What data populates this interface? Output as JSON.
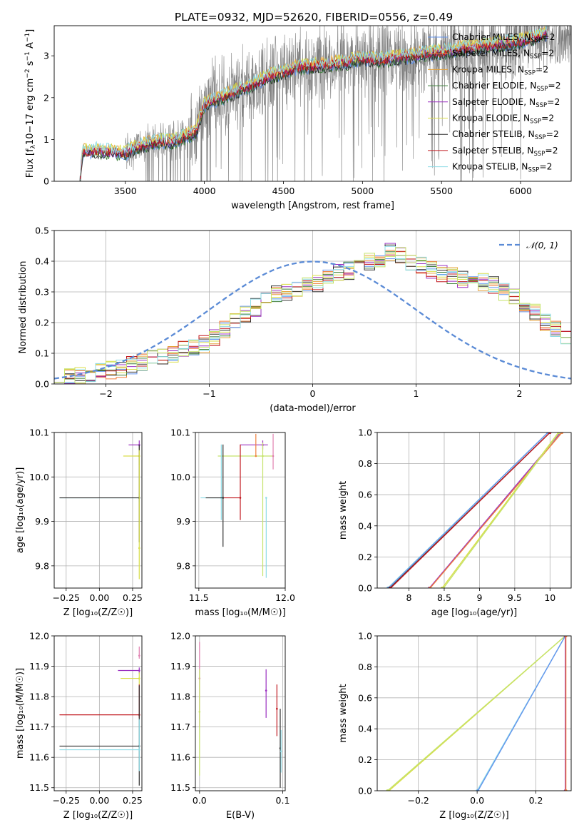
{
  "colors": {
    "Chabrier MILES": "#6495ED",
    "Salpeter MILES": "#F07F3C",
    "Kroupa MILES": "#E6A23B",
    "Chabrier ELODIE": "#3E7F3A",
    "Salpeter ELODIE": "#9A2FC0",
    "Kroupa ELODIE": "#D9DE4A",
    "Chabrier STELIB": "#303030",
    "Salpeter STELIB": "#C0171E",
    "Kroupa STELIB": "#8EDCE6",
    "data": "#808080",
    "gaussian": "#5B8BD6",
    "extra_pink": "#E07FB0",
    "extra_lime": "#C5E36A"
  },
  "chart_data": [
    {
      "id": "spectrum",
      "type": "line",
      "title": "PLATE=0932, MJD=52620, FIBERID=0556, z=0.49",
      "xlabel": "wavelength [Angstrom, rest frame]",
      "ylabel_parts": [
        "Flux [f",
        "λ",
        "10",
        "−17",
        " erg cm",
        "−2",
        " s",
        "−1",
        " A",
        "−1",
        "]"
      ],
      "xlim": [
        3050,
        6320
      ],
      "ylim": [
        0,
        3.72
      ],
      "xticks": [
        3500,
        4000,
        4500,
        5000,
        5500,
        6000
      ],
      "yticks": [
        0,
        1,
        2,
        3
      ],
      "grid": false,
      "legend_position": "upper-right",
      "series": [
        {
          "name": "Chabrier MILES",
          "sub": "SSP",
          "suffix": "=2"
        },
        {
          "name": "Salpeter MILES",
          "sub": "SSP",
          "suffix": "=2"
        },
        {
          "name": "Kroupa MILES",
          "sub": "SSP",
          "suffix": "=2"
        },
        {
          "name": "Chabrier ELODIE",
          "sub": "SSP",
          "suffix": "=2"
        },
        {
          "name": "Salpeter ELODIE",
          "sub": "SSP",
          "suffix": "=2"
        },
        {
          "name": "Kroupa ELODIE",
          "sub": "SSP",
          "suffix": "=2"
        },
        {
          "name": "Chabrier STELIB",
          "sub": "SSP",
          "suffix": "=2"
        },
        {
          "name": "Salpeter STELIB",
          "sub": "SSP",
          "suffix": "=2"
        },
        {
          "name": "Kroupa STELIB",
          "sub": "SSP",
          "suffix": "=2"
        }
      ],
      "model_continuum": [
        [
          3210,
          0.0
        ],
        [
          3230,
          0.7
        ],
        [
          3300,
          0.75
        ],
        [
          3400,
          0.7
        ],
        [
          3500,
          0.68
        ],
        [
          3600,
          0.85
        ],
        [
          3700,
          0.95
        ],
        [
          3800,
          0.95
        ],
        [
          3900,
          1.1
        ],
        [
          3950,
          1.2
        ],
        [
          4000,
          1.85
        ],
        [
          4100,
          2.0
        ],
        [
          4200,
          2.15
        ],
        [
          4300,
          2.3
        ],
        [
          4400,
          2.5
        ],
        [
          4500,
          2.6
        ],
        [
          4600,
          2.75
        ],
        [
          4700,
          2.75
        ],
        [
          4800,
          2.8
        ],
        [
          4900,
          2.85
        ],
        [
          5000,
          2.95
        ],
        [
          5100,
          2.9
        ],
        [
          5200,
          2.95
        ],
        [
          5300,
          3.0
        ],
        [
          5400,
          3.05
        ],
        [
          5500,
          3.1
        ],
        [
          5600,
          3.15
        ],
        [
          5700,
          3.2
        ],
        [
          5800,
          3.25
        ],
        [
          5900,
          3.3
        ],
        [
          6000,
          3.35
        ],
        [
          6100,
          3.45
        ],
        [
          6170,
          3.55
        ]
      ]
    },
    {
      "id": "residuals",
      "type": "step",
      "xlabel": "(data-model)/error",
      "ylabel": "Normed distribution",
      "xlim": [
        -2.5,
        2.5
      ],
      "ylim": [
        0,
        0.5
      ],
      "xticks": [
        -2,
        -1,
        0,
        1,
        2
      ],
      "yticks": [
        0.0,
        0.1,
        0.2,
        0.3,
        0.4,
        0.5
      ],
      "grid": true,
      "legend_position": "upper-right",
      "reference_curve": {
        "label": "𝒩(0, 1)",
        "mean": 0,
        "sigma": 1
      },
      "bin_width": 0.1,
      "bin_start": -2.5,
      "base_histogram": [
        0.02,
        0.025,
        0.03,
        0.03,
        0.04,
        0.045,
        0.05,
        0.06,
        0.07,
        0.08,
        0.09,
        0.1,
        0.11,
        0.12,
        0.13,
        0.15,
        0.18,
        0.2,
        0.23,
        0.25,
        0.27,
        0.29,
        0.3,
        0.31,
        0.32,
        0.33,
        0.35,
        0.36,
        0.37,
        0.38,
        0.4,
        0.41,
        0.43,
        0.42,
        0.4,
        0.39,
        0.37,
        0.36,
        0.35,
        0.34,
        0.34,
        0.33,
        0.32,
        0.3,
        0.28,
        0.25,
        0.23,
        0.2,
        0.18,
        0.15,
        0.13,
        0.12,
        0.11,
        0.1,
        0.09,
        0.08,
        0.07,
        0.06,
        0.05,
        0.04
      ]
    },
    {
      "id": "Z-age",
      "type": "error-cross",
      "xlabel": "Z [log₁₀(Z/Z☉)]",
      "ylabel": "age  [log₁₀(age/yr)]",
      "xlim": [
        -0.34,
        0.32
      ],
      "ylim": [
        9.75,
        10.1
      ],
      "xticks": [
        -0.25,
        0.0,
        0.25
      ],
      "xtick_labels": [
        "−0.25",
        "0.00",
        "0.25"
      ],
      "yticks": [
        9.8,
        9.9,
        10.0,
        10.1
      ],
      "grid": true,
      "points": [
        {
          "series": "Salpeter ELODIE",
          "x": 0.3,
          "y": 10.072,
          "xerr": [
            0.08,
            0.0
          ],
          "yerr": [
            0.01,
            0.01
          ]
        },
        {
          "series": "Kroupa ELODIE",
          "x": 0.3,
          "y": 10.047,
          "xerr": [
            0.12,
            0.0
          ],
          "yerr": [
            0.02,
            0.02
          ]
        },
        {
          "series": "Kroupa STELIB",
          "x": 0.3,
          "y": 9.953,
          "xerr": [
            0.6,
            0.0
          ],
          "yerr": [
            0.01,
            0.01
          ]
        },
        {
          "series": "Chabrier STELIB",
          "x": 0.3,
          "y": 9.953,
          "xerr": [
            0.6,
            0.0
          ],
          "yerr": [
            0.1,
            0.12
          ]
        },
        {
          "series": "Kroupa ELODIE",
          "x": 0.3,
          "y": 9.84,
          "xerr": [
            0.0,
            0.0
          ],
          "yerr": [
            0.07,
            0.22
          ]
        }
      ]
    },
    {
      "id": "mass-age",
      "type": "error-cross",
      "xlabel": "mass [log₁₀(M/M☉)]",
      "ylabel": "",
      "xlim": [
        11.48,
        12.0
      ],
      "ylim": [
        9.75,
        10.1
      ],
      "xticks": [
        11.5,
        12.0
      ],
      "xtick_labels": [
        "11.5",
        "12.0"
      ],
      "yticks": [
        9.8,
        9.9,
        10.0,
        10.1
      ],
      "grid": true,
      "points": [
        {
          "series": "Salpeter ELODIE",
          "x": 11.87,
          "y": 10.072,
          "xerr": [
            0.13,
            0.03
          ],
          "yerr": [
            0.01,
            0.01
          ]
        },
        {
          "series": "extra_lime",
          "x": 11.87,
          "y": 10.047,
          "xerr": [
            0.26,
            0.06
          ],
          "yerr": [
            0.27,
            0.03
          ]
        },
        {
          "series": "Salpeter MILES",
          "x": 11.83,
          "y": 10.047,
          "xerr": [
            0.0,
            0.0
          ],
          "yerr": [
            0.0,
            0.05
          ]
        },
        {
          "series": "extra_pink",
          "x": 11.93,
          "y": 10.047,
          "xerr": [
            0.0,
            0.0
          ],
          "yerr": [
            0.03,
            0.05
          ]
        },
        {
          "series": "Kroupa STELIB",
          "x": 11.63,
          "y": 9.953,
          "xerr": [
            0.12,
            0.0
          ],
          "yerr": [
            0.05,
            0.12
          ]
        },
        {
          "series": "Salpeter STELIB",
          "x": 11.74,
          "y": 9.953,
          "xerr": [
            0.1,
            0.0
          ],
          "yerr": [
            0.05,
            0.12
          ]
        },
        {
          "series": "Chabrier STELIB",
          "x": 11.64,
          "y": 9.953,
          "xerr": [
            0.1,
            0.0
          ],
          "yerr": [
            0.11,
            0.12
          ]
        },
        {
          "series": "Kroupa STELIB",
          "x": 11.89,
          "y": 9.953,
          "xerr": [
            0.0,
            0.0
          ],
          "yerr": [
            0.18,
            0.0
          ]
        }
      ]
    },
    {
      "id": "age-massweight",
      "type": "cumulative-line",
      "xlabel": "age  [log₁₀(age/yr)]",
      "ylabel": "mass weight",
      "xlim": [
        7.55,
        10.3
      ],
      "ylim": [
        0,
        1.0
      ],
      "xticks": [
        8.0,
        8.5,
        9.0,
        9.5,
        10.0
      ],
      "yticks": [
        0.0,
        0.2,
        0.4,
        0.6,
        0.8,
        1.0
      ],
      "grid": true,
      "lines": [
        {
          "series": "Kroupa STELIB",
          "x": [
            7.7,
            9.97
          ]
        },
        {
          "series": "Chabrier MILES",
          "x": [
            7.71,
            9.97
          ]
        },
        {
          "series": "Chabrier STELIB",
          "x": [
            7.73,
            10.0
          ]
        },
        {
          "series": "Salpeter STELIB",
          "x": [
            7.74,
            10.0
          ]
        },
        {
          "series": "Salpeter ELODIE",
          "x": [
            8.29,
            10.15
          ]
        },
        {
          "series": "Salpeter MILES",
          "x": [
            8.3,
            10.17
          ]
        },
        {
          "series": "Kroupa ELODIE",
          "x": [
            8.47,
            10.12
          ]
        },
        {
          "series": "extra_lime",
          "x": [
            8.49,
            10.13
          ]
        }
      ]
    },
    {
      "id": "Z-mass",
      "type": "error-cross",
      "xlabel": "Z [log₁₀(Z/Z☉)]",
      "ylabel": "mass [log₁₀(M/M☉)]",
      "xlim": [
        -0.34,
        0.32
      ],
      "ylim": [
        11.49,
        12.0
      ],
      "xticks": [
        -0.25,
        0.0,
        0.25
      ],
      "xtick_labels": [
        "−0.25",
        "0.00",
        "0.25"
      ],
      "yticks": [
        11.5,
        11.6,
        11.7,
        11.8,
        11.9,
        12.0
      ],
      "grid": true,
      "points": [
        {
          "series": "extra_pink",
          "x": 0.3,
          "y": 11.935,
          "xerr": [
            0.0,
            0.0
          ],
          "yerr": [
            0.01,
            0.03
          ]
        },
        {
          "series": "Salpeter ELODIE",
          "x": 0.3,
          "y": 11.886,
          "xerr": [
            0.16,
            0.0
          ],
          "yerr": [
            0.01,
            0.01
          ]
        },
        {
          "series": "Kroupa ELODIE",
          "x": 0.3,
          "y": 11.86,
          "xerr": [
            0.14,
            0.0
          ],
          "yerr": [
            0.02,
            0.02
          ]
        },
        {
          "series": "Salpeter STELIB",
          "x": 0.3,
          "y": 11.74,
          "xerr": [
            0.6,
            0.0
          ],
          "yerr": [
            0.01,
            0.1
          ]
        },
        {
          "series": "Chabrier STELIB",
          "x": 0.3,
          "y": 11.637,
          "xerr": [
            0.6,
            0.0
          ],
          "yerr": [
            0.13,
            0.2
          ]
        },
        {
          "series": "Kroupa STELIB",
          "x": 0.3,
          "y": 11.625,
          "xerr": [
            0.6,
            0.0
          ],
          "yerr": [
            0.07,
            0.1
          ]
        }
      ]
    },
    {
      "id": "EBV-mass",
      "type": "error-bar",
      "xlabel": "E(B-V)",
      "ylabel": "",
      "xlim": [
        -0.005,
        0.103
      ],
      "ylim": [
        11.49,
        12.0
      ],
      "xticks": [
        0.0,
        0.1
      ],
      "xtick_labels": [
        "0.0",
        "0.1"
      ],
      "yticks": [
        11.5,
        11.6,
        11.7,
        11.8,
        11.9,
        12.0
      ],
      "grid": true,
      "points": [
        {
          "series": "extra_pink",
          "x": 0.0,
          "y": 11.86,
          "yerr": [
            0.16,
            0.12
          ]
        },
        {
          "series": "extra_lime",
          "x": 0.0,
          "y": 11.75,
          "yerr": [
            0.21,
            0.14
          ]
        },
        {
          "series": "Salpeter ELODIE",
          "x": 0.08,
          "y": 11.82,
          "yerr": [
            0.09,
            0.07
          ]
        },
        {
          "series": "Salpeter STELIB",
          "x": 0.093,
          "y": 11.76,
          "yerr": [
            0.09,
            0.08
          ]
        },
        {
          "series": "Chabrier STELIB",
          "x": 0.097,
          "y": 11.63,
          "yerr": [
            0.13,
            0.13
          ]
        },
        {
          "series": "Kroupa STELIB",
          "x": 0.098,
          "y": 11.62,
          "yerr": [
            0.07,
            0.07
          ]
        }
      ]
    },
    {
      "id": "Z-massweight",
      "type": "cumulative-line",
      "xlabel": "Z [log₁₀(Z/Z☉)]",
      "ylabel": "mass weight",
      "xlim": [
        -0.34,
        0.32
      ],
      "ylim": [
        0,
        1.0
      ],
      "xticks": [
        -0.2,
        0.0,
        0.2
      ],
      "xtick_labels": [
        "−0.2",
        "0.0",
        "0.2"
      ],
      "yticks": [
        0.0,
        0.2,
        0.4,
        0.6,
        0.8,
        1.0
      ],
      "grid": true,
      "lines": [
        {
          "series": "Kroupa ELODIE",
          "x": [
            -0.3,
            0.3
          ]
        },
        {
          "series": "extra_lime",
          "x": [
            -0.305,
            0.3
          ]
        },
        {
          "series": "Kroupa STELIB",
          "x": [
            0.0,
            0.3
          ]
        },
        {
          "series": "Chabrier MILES",
          "x": [
            0.003,
            0.3
          ]
        },
        {
          "series": "Salpeter ELODIE",
          "x": [
            0.3,
            0.3
          ]
        },
        {
          "series": "Salpeter MILES",
          "x": [
            0.302,
            0.302
          ]
        }
      ]
    }
  ]
}
